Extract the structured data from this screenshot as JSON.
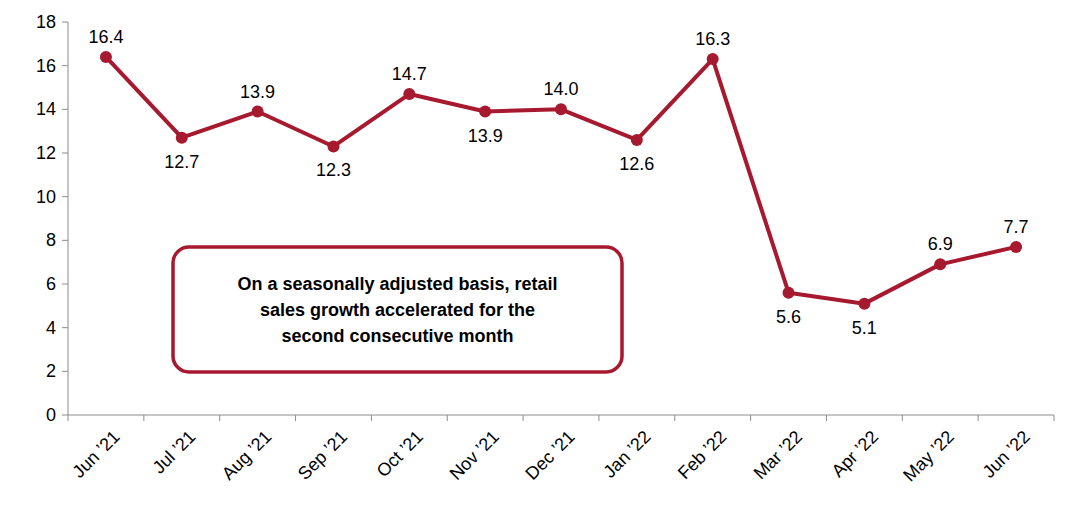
{
  "chart_data": {
    "type": "line",
    "categories": [
      "Jun ’21",
      "Jul ’21",
      "Aug ’21",
      "Sep ’21",
      "Oct ’21",
      "Nov ’21",
      "Dec ’21",
      "Jan ’22",
      "Feb ’22",
      "Mar ’22",
      "Apr ’22",
      "May ’22",
      "Jun ’22"
    ],
    "values": [
      16.4,
      12.7,
      13.9,
      12.3,
      14.7,
      13.9,
      14.0,
      12.6,
      16.3,
      5.6,
      5.1,
      6.9,
      7.7
    ],
    "value_labels": [
      "16.4",
      "12.7",
      "13.9",
      "12.3",
      "14.7",
      "13.9",
      "14.0",
      "12.6",
      "16.3",
      "5.6",
      "5.1",
      "6.9",
      "7.7"
    ],
    "color": "#a6192e",
    "marker": "circle",
    "data_labels": true,
    "grid": false,
    "ylim": [
      0,
      18
    ],
    "yticks": [
      0,
      2,
      4,
      6,
      8,
      10,
      12,
      14,
      16,
      18
    ],
    "annotations": [
      "On a seasonally adjusted basis, retail",
      "sales growth accelerated for the",
      "second consecutive month"
    ]
  }
}
